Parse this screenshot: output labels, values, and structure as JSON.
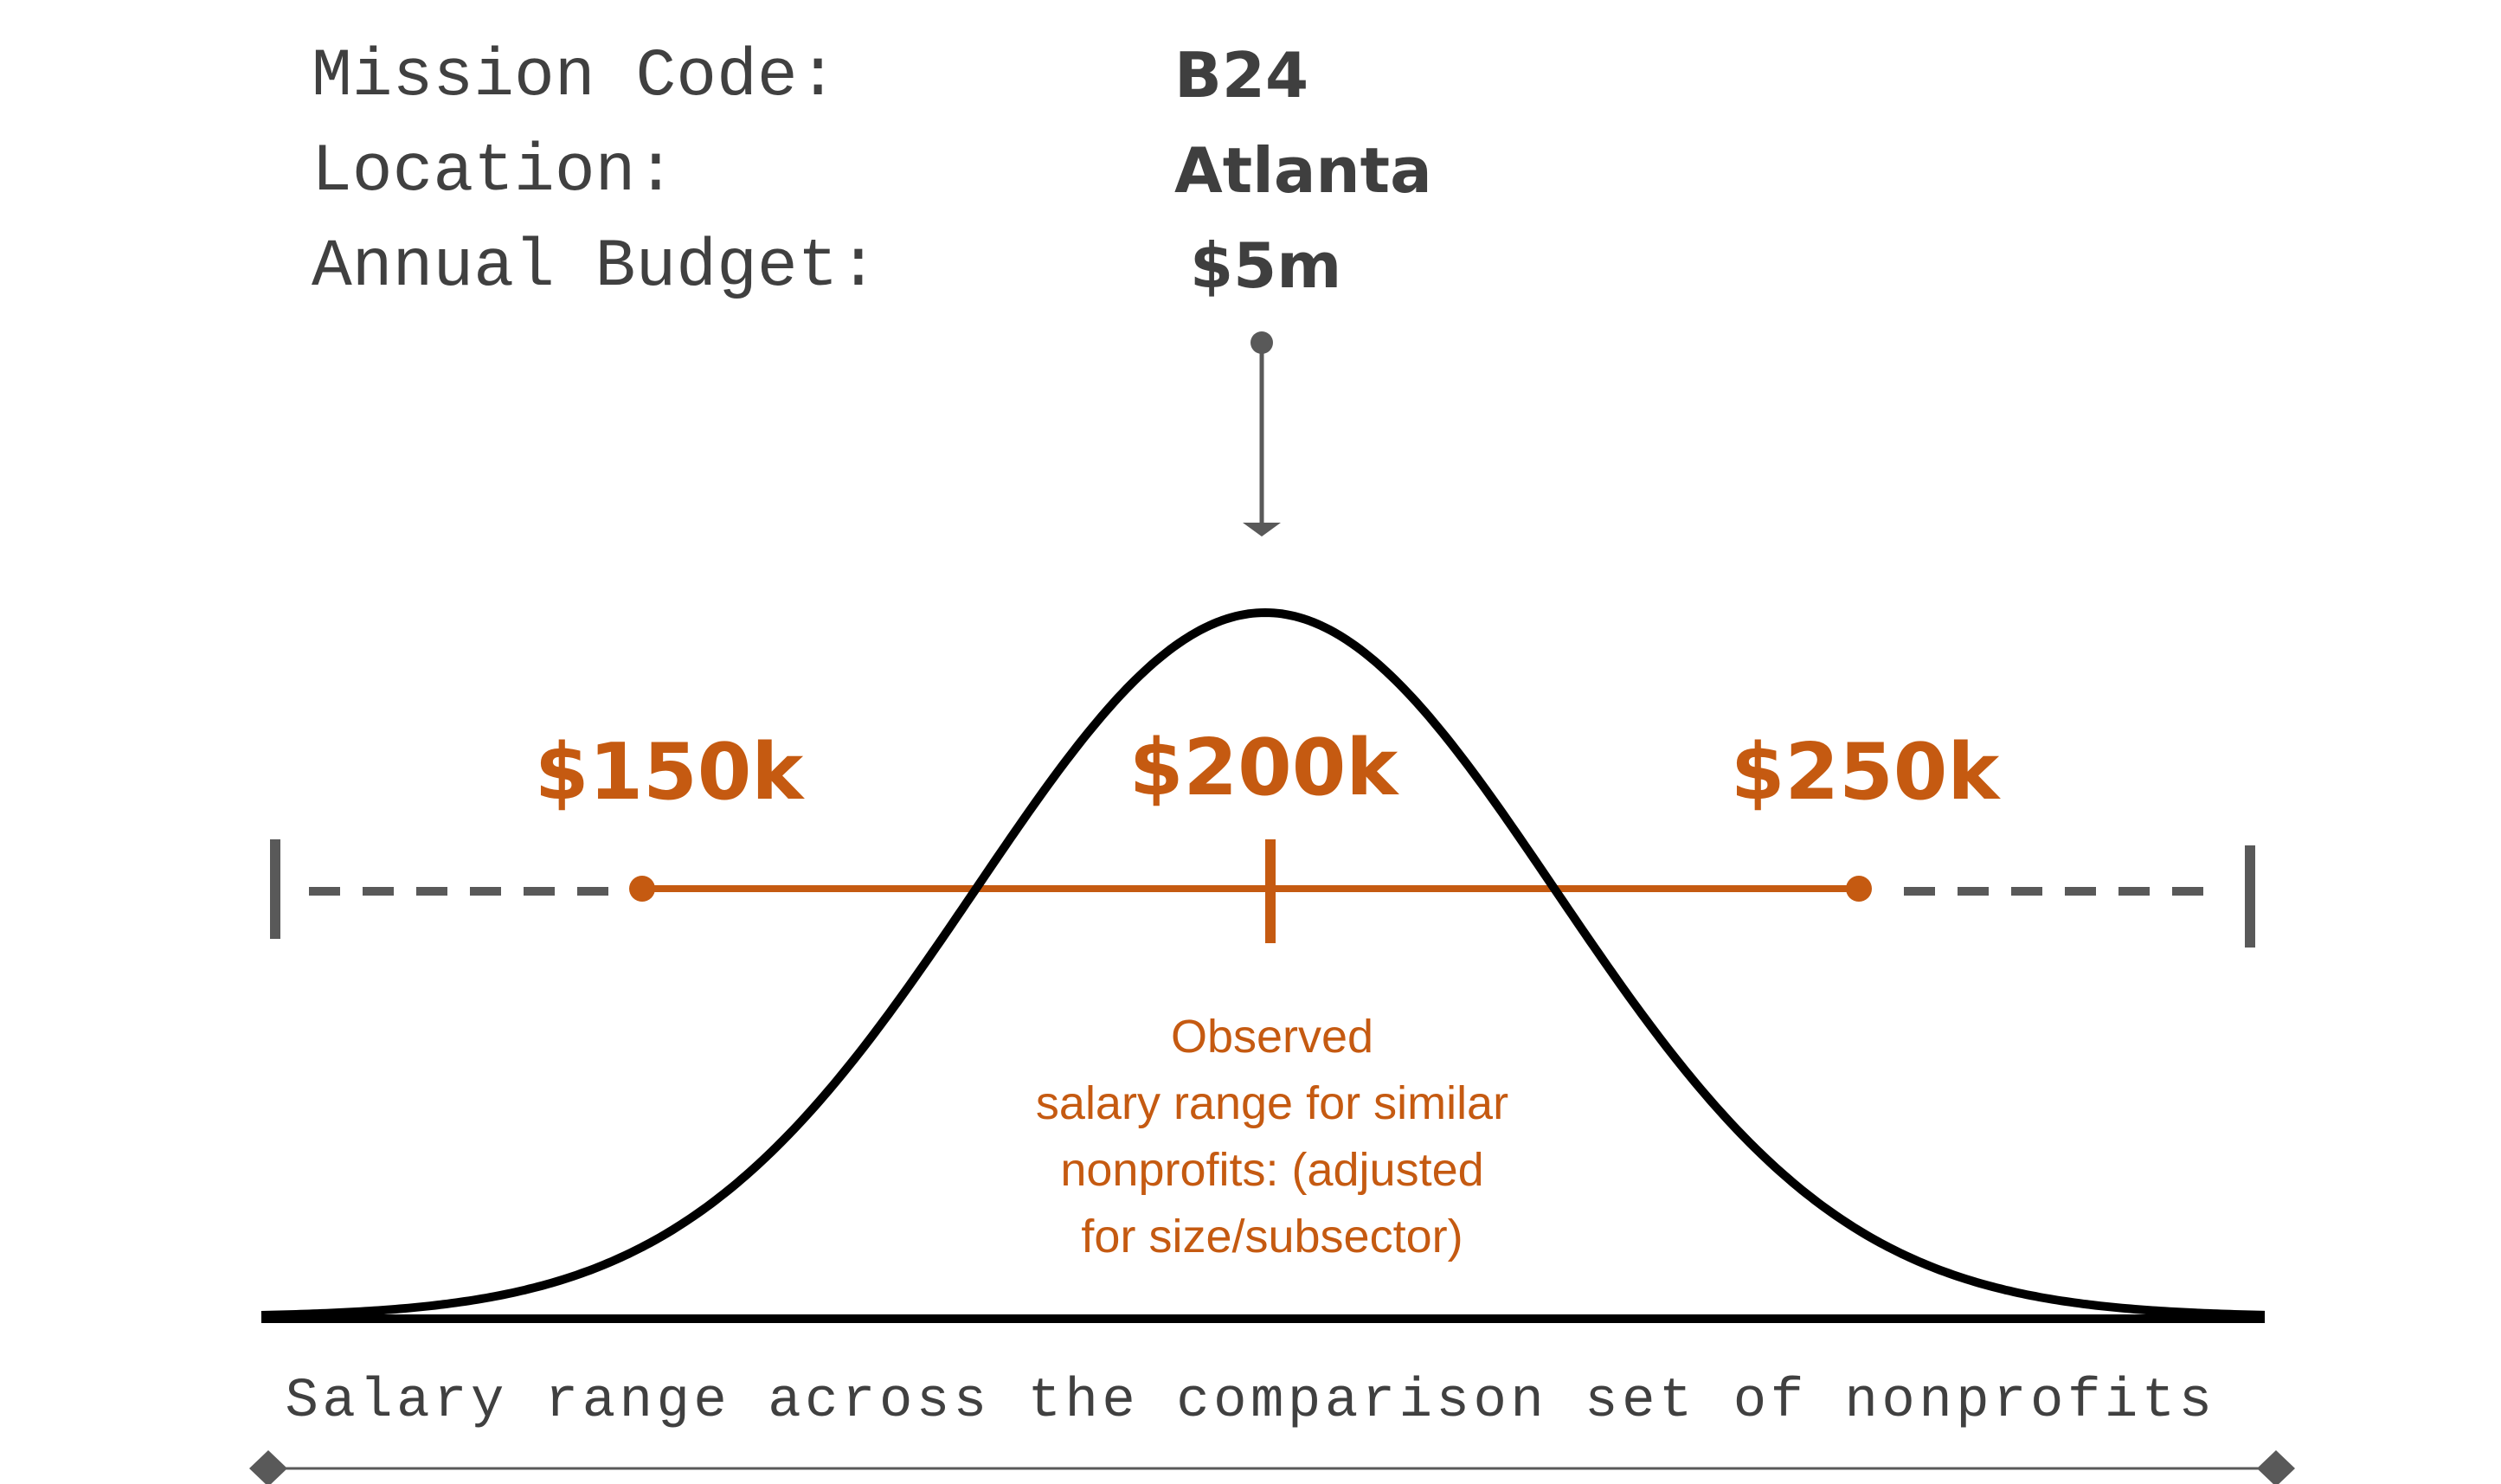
{
  "colors": {
    "accent": "#c55a11",
    "text": "#404040",
    "curve": "#000000"
  },
  "mission": {
    "code_label": "Mission Code:",
    "code_value": "B24",
    "location_label": "Location:",
    "location_value": "Atlanta",
    "budget_label": "Annual Budget:",
    "budget_value": "$5m"
  },
  "range": {
    "low_label": "$150k",
    "mid_label": "$200k",
    "high_label": "$250k",
    "observed_note": "Observed\nsalary range for similar\nnonprofits: (adjusted\nfor size/subsector)"
  },
  "axis": {
    "caption": "Salary range across the comparison set of nonprofits"
  }
}
